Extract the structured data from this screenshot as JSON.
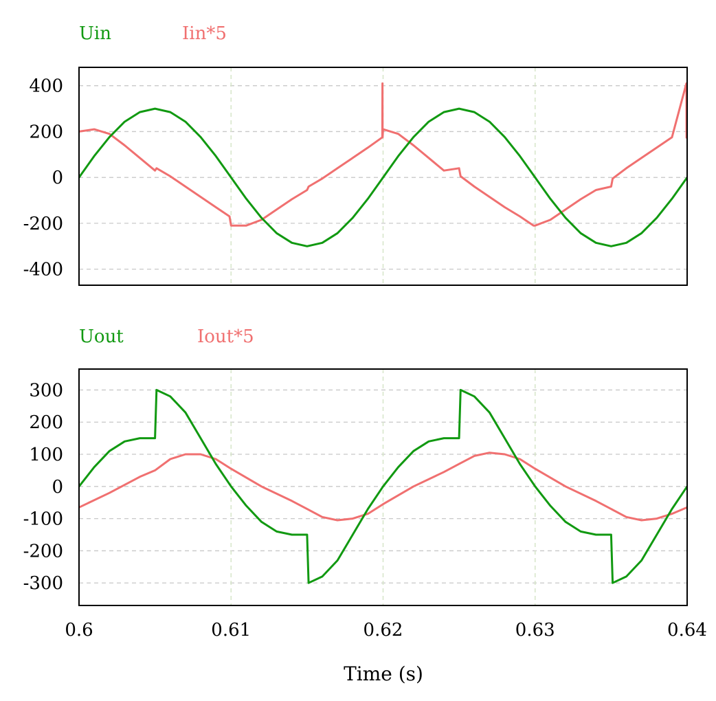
{
  "chart_data": [
    {
      "type": "line",
      "title": "",
      "xlabel": "",
      "ylabel": "",
      "xlim": [
        0.6,
        0.64
      ],
      "ylim": [
        -470,
        480
      ],
      "yticks": [
        "400",
        "200",
        "0",
        "-200",
        "-400"
      ],
      "ytick_values": [
        400,
        200,
        0,
        -200,
        -400
      ],
      "xtick_values": [
        0.61,
        0.62,
        0.63
      ],
      "grid": true,
      "legend_position": "top-left",
      "series": [
        {
          "name": "Uin",
          "color": "#119911",
          "x": [
            0.6,
            0.601,
            0.602,
            0.603,
            0.604,
            0.605,
            0.606,
            0.607,
            0.608,
            0.609,
            0.61,
            0.611,
            0.612,
            0.613,
            0.614,
            0.615,
            0.616,
            0.617,
            0.618,
            0.619,
            0.62,
            0.621,
            0.622,
            0.623,
            0.624,
            0.625,
            0.626,
            0.627,
            0.628,
            0.629,
            0.63,
            0.631,
            0.632,
            0.633,
            0.634,
            0.635,
            0.636,
            0.637,
            0.638,
            0.639,
            0.64
          ],
          "values": [
            0,
            93,
            176,
            243,
            285,
            300,
            285,
            243,
            176,
            93,
            0,
            -93,
            -176,
            -243,
            -285,
            -300,
            -285,
            -243,
            -176,
            -93,
            0,
            93,
            176,
            243,
            285,
            300,
            285,
            243,
            176,
            93,
            0,
            -93,
            -176,
            -243,
            -285,
            -300,
            -285,
            -243,
            -176,
            -93,
            0
          ]
        },
        {
          "name": "Iin*5",
          "color": "#f07070",
          "x": [
            0.6,
            0.601,
            0.602,
            0.603,
            0.604,
            0.605,
            0.6051,
            0.606,
            0.607,
            0.608,
            0.609,
            0.6099,
            0.61,
            0.611,
            0.612,
            0.613,
            0.614,
            0.615,
            0.6151,
            0.616,
            0.617,
            0.618,
            0.619,
            0.61995,
            0.61996,
            0.61997,
            0.62,
            0.621,
            0.622,
            0.623,
            0.624,
            0.625,
            0.6251,
            0.626,
            0.627,
            0.628,
            0.629,
            0.6299,
            0.63,
            0.631,
            0.632,
            0.633,
            0.634,
            0.635,
            0.6351,
            0.636,
            0.637,
            0.638,
            0.639,
            0.63995,
            0.63996,
            0.63997
          ],
          "values": [
            200,
            210,
            190,
            140,
            85,
            30,
            40,
            5,
            -40,
            -85,
            -130,
            -170,
            -210,
            -210,
            -185,
            -140,
            -95,
            -55,
            -40,
            -5,
            40,
            85,
            130,
            175,
            410,
            175,
            210,
            190,
            140,
            85,
            30,
            40,
            5,
            -40,
            -85,
            -130,
            -170,
            -210,
            -210,
            -185,
            -140,
            -95,
            -55,
            -40,
            -5,
            40,
            85,
            130,
            175,
            410,
            175,
            170
          ]
        }
      ]
    },
    {
      "type": "line",
      "title": "",
      "xlabel": "Time (s)",
      "ylabel": "",
      "xlim": [
        0.6,
        0.64
      ],
      "ylim": [
        -370,
        365
      ],
      "yticks": [
        "300",
        "200",
        "100",
        "0",
        "-100",
        "-200",
        "-300"
      ],
      "ytick_values": [
        300,
        200,
        100,
        0,
        -100,
        -200,
        -300
      ],
      "xticks": [
        "0.6",
        "0.61",
        "0.62",
        "0.63",
        "0.64"
      ],
      "xtick_values": [
        0.6,
        0.61,
        0.62,
        0.63,
        0.64
      ],
      "grid": true,
      "legend_position": "top-left",
      "series": [
        {
          "name": "Uout",
          "color": "#119911",
          "x": [
            0.6,
            0.601,
            0.602,
            0.603,
            0.604,
            0.605,
            0.6051,
            0.606,
            0.607,
            0.608,
            0.609,
            0.61,
            0.611,
            0.612,
            0.613,
            0.614,
            0.615,
            0.6151,
            0.616,
            0.617,
            0.618,
            0.619,
            0.62,
            0.621,
            0.622,
            0.623,
            0.624,
            0.625,
            0.6251,
            0.626,
            0.627,
            0.628,
            0.629,
            0.63,
            0.631,
            0.632,
            0.633,
            0.634,
            0.635,
            0.6351,
            0.636,
            0.637,
            0.638,
            0.639,
            0.64
          ],
          "values": [
            0,
            60,
            110,
            140,
            150,
            150,
            300,
            280,
            230,
            150,
            70,
            0,
            -60,
            -110,
            -140,
            -150,
            -150,
            -300,
            -280,
            -230,
            -150,
            -70,
            0,
            60,
            110,
            140,
            150,
            150,
            300,
            280,
            230,
            150,
            70,
            0,
            -60,
            -110,
            -140,
            -150,
            -150,
            -300,
            -280,
            -230,
            -150,
            -70,
            0
          ]
        },
        {
          "name": "Iout*5",
          "color": "#f07070",
          "x": [
            0.6,
            0.602,
            0.604,
            0.605,
            0.606,
            0.607,
            0.608,
            0.609,
            0.61,
            0.612,
            0.614,
            0.615,
            0.616,
            0.617,
            0.618,
            0.619,
            0.62,
            0.622,
            0.624,
            0.625,
            0.626,
            0.627,
            0.628,
            0.629,
            0.63,
            0.632,
            0.634,
            0.635,
            0.636,
            0.637,
            0.638,
            0.639,
            0.64
          ],
          "values": [
            -65,
            -20,
            30,
            50,
            85,
            100,
            100,
            85,
            55,
            0,
            -45,
            -70,
            -95,
            -105,
            -100,
            -85,
            -55,
            0,
            45,
            70,
            95,
            105,
            100,
            85,
            55,
            0,
            -45,
            -70,
            -95,
            -105,
            -100,
            -85,
            -65
          ]
        }
      ]
    }
  ]
}
